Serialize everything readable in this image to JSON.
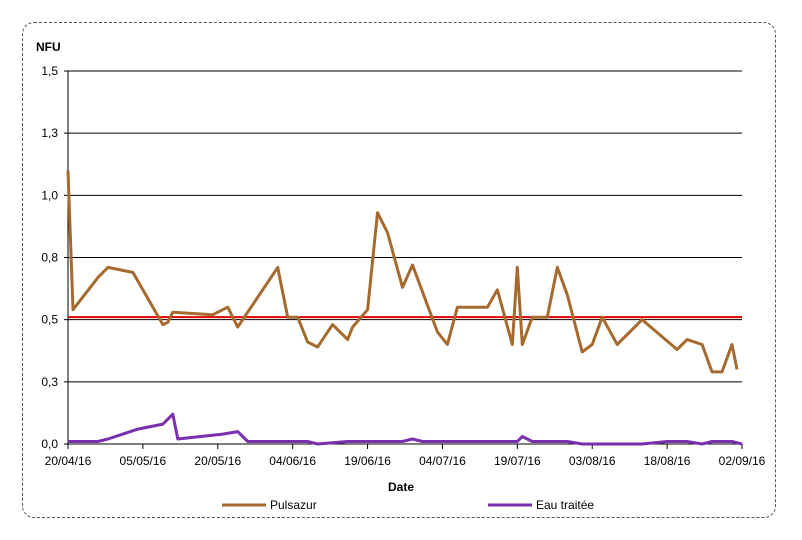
{
  "chart_data": {
    "type": "line",
    "ylabel": "NFU",
    "xlabel": "Date",
    "ylim": [
      0,
      1.5
    ],
    "y_ticks": [
      "0,0",
      "0,3",
      "0,5",
      "0,8",
      "1,0",
      "1,3",
      "1,5"
    ],
    "y_tick_values": [
      0,
      0.25,
      0.5,
      0.75,
      1.0,
      1.25,
      1.5
    ],
    "x_range": [
      "2016-04-20",
      "2016-09-02"
    ],
    "x_ticks": [
      "20/04/16",
      "05/05/16",
      "20/05/16",
      "04/06/16",
      "19/06/16",
      "04/07/16",
      "19/07/16",
      "03/08/16",
      "18/08/16",
      "02/09/16"
    ],
    "x_tick_dates": [
      "2016-04-20",
      "2016-05-05",
      "2016-05-20",
      "2016-06-04",
      "2016-06-19",
      "2016-07-04",
      "2016-07-19",
      "2016-08-03",
      "2016-08-18",
      "2016-09-02"
    ],
    "grid": "horizontal",
    "reference_line": {
      "y": 0.51,
      "color": "#e00000"
    },
    "legend_position": "bottom",
    "series": [
      {
        "name": "Pulsazur",
        "color": "#a66a2e",
        "points": [
          [
            "2016-04-20",
            1.1
          ],
          [
            "2016-04-21",
            0.54
          ],
          [
            "2016-04-26",
            0.67
          ],
          [
            "2016-04-28",
            0.71
          ],
          [
            "2016-05-03",
            0.69
          ],
          [
            "2016-05-09",
            0.48
          ],
          [
            "2016-05-10",
            0.49
          ],
          [
            "2016-05-11",
            0.53
          ],
          [
            "2016-05-19",
            0.52
          ],
          [
            "2016-05-22",
            0.55
          ],
          [
            "2016-05-24",
            0.47
          ],
          [
            "2016-06-01",
            0.71
          ],
          [
            "2016-06-03",
            0.51
          ],
          [
            "2016-06-05",
            0.51
          ],
          [
            "2016-06-07",
            0.41
          ],
          [
            "2016-06-09",
            0.39
          ],
          [
            "2016-06-12",
            0.48
          ],
          [
            "2016-06-15",
            0.42
          ],
          [
            "2016-06-16",
            0.47
          ],
          [
            "2016-06-19",
            0.54
          ],
          [
            "2016-06-21",
            0.93
          ],
          [
            "2016-06-23",
            0.85
          ],
          [
            "2016-06-26",
            0.63
          ],
          [
            "2016-06-28",
            0.72
          ],
          [
            "2016-07-03",
            0.45
          ],
          [
            "2016-07-05",
            0.4
          ],
          [
            "2016-07-07",
            0.55
          ],
          [
            "2016-07-13",
            0.55
          ],
          [
            "2016-07-15",
            0.62
          ],
          [
            "2016-07-18",
            0.4
          ],
          [
            "2016-07-19",
            0.71
          ],
          [
            "2016-07-20",
            0.4
          ],
          [
            "2016-07-22",
            0.51
          ],
          [
            "2016-07-25",
            0.51
          ],
          [
            "2016-07-27",
            0.71
          ],
          [
            "2016-07-29",
            0.6
          ],
          [
            "2016-08-01",
            0.37
          ],
          [
            "2016-08-03",
            0.4
          ],
          [
            "2016-08-05",
            0.51
          ],
          [
            "2016-08-08",
            0.4
          ],
          [
            "2016-08-13",
            0.5
          ],
          [
            "2016-08-20",
            0.38
          ],
          [
            "2016-08-22",
            0.42
          ],
          [
            "2016-08-25",
            0.4
          ],
          [
            "2016-08-27",
            0.29
          ],
          [
            "2016-08-29",
            0.29
          ],
          [
            "2016-08-31",
            0.4
          ],
          [
            "2016-09-01",
            0.3
          ]
        ]
      },
      {
        "name": "Eau traitée",
        "color": "#7a2fb0",
        "points": [
          [
            "2016-04-20",
            0.01
          ],
          [
            "2016-04-26",
            0.01
          ],
          [
            "2016-04-28",
            0.02
          ],
          [
            "2016-05-04",
            0.06
          ],
          [
            "2016-05-09",
            0.08
          ],
          [
            "2016-05-11",
            0.12
          ],
          [
            "2016-05-12",
            0.02
          ],
          [
            "2016-05-21",
            0.04
          ],
          [
            "2016-05-24",
            0.05
          ],
          [
            "2016-05-26",
            0.01
          ],
          [
            "2016-06-07",
            0.01
          ],
          [
            "2016-06-09",
            0.0
          ],
          [
            "2016-06-15",
            0.01
          ],
          [
            "2016-06-26",
            0.01
          ],
          [
            "2016-06-28",
            0.02
          ],
          [
            "2016-06-30",
            0.01
          ],
          [
            "2016-07-19",
            0.01
          ],
          [
            "2016-07-20",
            0.03
          ],
          [
            "2016-07-22",
            0.01
          ],
          [
            "2016-07-29",
            0.01
          ],
          [
            "2016-08-01",
            0.0
          ],
          [
            "2016-08-13",
            0.0
          ],
          [
            "2016-08-18",
            0.01
          ],
          [
            "2016-08-22",
            0.01
          ],
          [
            "2016-08-25",
            0.0
          ],
          [
            "2016-08-27",
            0.01
          ],
          [
            "2016-08-31",
            0.01
          ],
          [
            "2016-09-02",
            0.0
          ]
        ]
      }
    ]
  }
}
